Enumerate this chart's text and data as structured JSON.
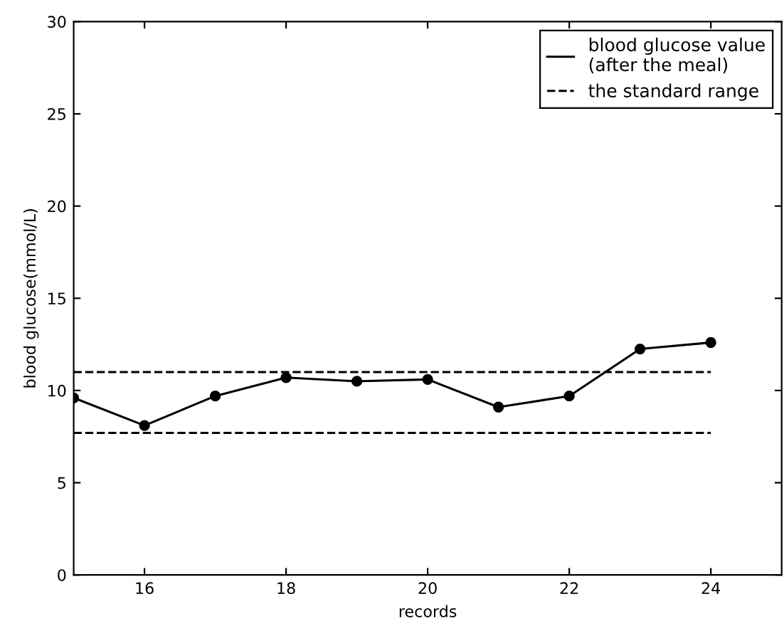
{
  "chart_data": {
    "type": "line",
    "xlabel": "records",
    "ylabel": "blood glucose(mmol/L)",
    "xlim": [
      15,
      25
    ],
    "xticks": [
      16,
      18,
      20,
      22,
      24
    ],
    "ylim": [
      0,
      30
    ],
    "yticks": [
      0,
      5,
      10,
      15,
      20,
      25,
      30
    ],
    "grid": false,
    "legend": "top right",
    "series": [
      {
        "name": "blood glucose value\n(after the meal)",
        "color": "#000000",
        "marker": "circle",
        "line_style": "solid",
        "x": [
          15,
          16,
          17,
          18,
          19,
          20,
          21,
          22,
          23,
          24
        ],
        "values": [
          9.6,
          8.1,
          9.7,
          10.7,
          10.5,
          10.6,
          9.1,
          9.7,
          12.25,
          12.6
        ]
      },
      {
        "name": "the standard range",
        "color": "#000000",
        "marker": "none",
        "line_style": "dashed",
        "x": [
          15,
          24
        ],
        "values": [
          11.0,
          11.0
        ]
      },
      {
        "color": "#000000",
        "marker": "none",
        "line_style": "dashed",
        "x": [
          15,
          24
        ],
        "values": [
          7.7,
          7.7
        ]
      }
    ]
  }
}
